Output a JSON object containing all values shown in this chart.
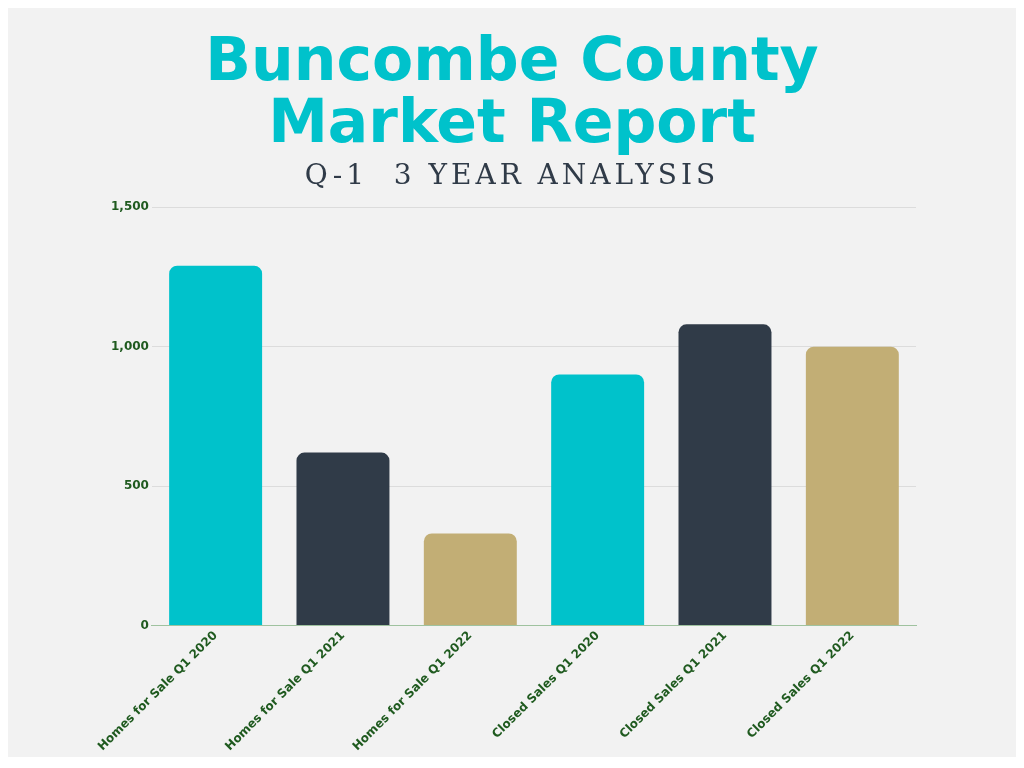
{
  "chart_data": {
    "type": "bar",
    "title": "Buncombe County Market Report",
    "subtitle": "Q-1  3 YEAR ANALYSIS",
    "categories": [
      "Homes for Sale Q1 2020",
      "Homes for Sale Q1 2021",
      "Homes for Sale Q1 2022",
      "Closed Sales Q1 2020",
      "Closed Sales Q1 2021",
      "Closed Sales Q1 2022"
    ],
    "values": [
      1290,
      620,
      330,
      900,
      1080,
      1000
    ],
    "colors": [
      "#00c2cb",
      "#303b48",
      "#c2ae75",
      "#00c2cb",
      "#303b48",
      "#c2ae75"
    ],
    "ylim": [
      0,
      1500
    ],
    "yticks": [
      {
        "value": 0,
        "label": "0"
      },
      {
        "value": 500,
        "label": "500"
      },
      {
        "value": 1000,
        "label": "1,000"
      },
      {
        "value": 1500,
        "label": "1,500"
      }
    ],
    "grid": "y",
    "legend": false
  }
}
